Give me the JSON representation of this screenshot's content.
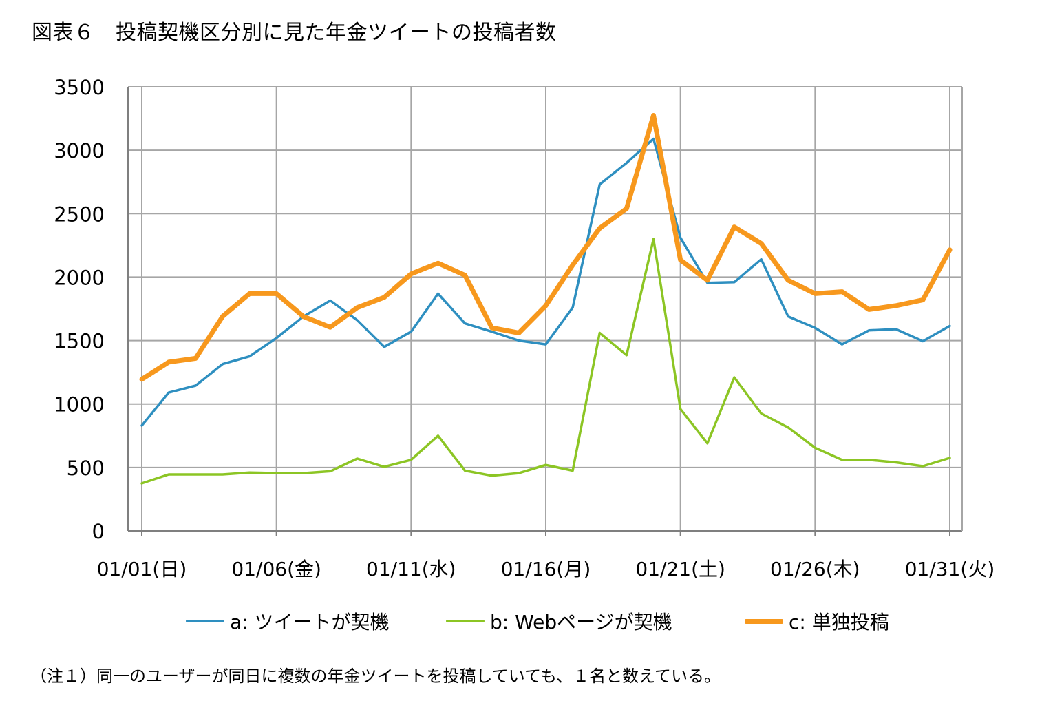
{
  "chart_data": {
    "type": "line",
    "title": "図表６　投稿契機区分別に見た年金ツイートの投稿者数",
    "xlabel": "",
    "ylabel": "",
    "ylim": [
      0,
      3500
    ],
    "yticks": [
      0,
      500,
      1000,
      1500,
      2000,
      2500,
      3000,
      3500
    ],
    "xtick_labels": [
      {
        "day": 1,
        "label": "01/01(日)"
      },
      {
        "day": 6,
        "label": "01/06(金)"
      },
      {
        "day": 11,
        "label": "01/11(水)"
      },
      {
        "day": 16,
        "label": "01/16(月)"
      },
      {
        "day": 21,
        "label": "01/21(土)"
      },
      {
        "day": 26,
        "label": "01/26(木)"
      },
      {
        "day": 31,
        "label": "01/31(火)"
      }
    ],
    "x": [
      1,
      2,
      3,
      4,
      5,
      6,
      7,
      8,
      9,
      10,
      11,
      12,
      13,
      14,
      15,
      16,
      17,
      18,
      19,
      20,
      21,
      22,
      23,
      24,
      25,
      26,
      27,
      28,
      29,
      30,
      31
    ],
    "grid": true,
    "legend_position": "bottom",
    "series": [
      {
        "name": "a: ツイートが契機",
        "color": "#2e8fc0",
        "values": [
          830,
          1090,
          1145,
          1315,
          1375,
          1520,
          1690,
          1815,
          1660,
          1450,
          1570,
          1870,
          1635,
          1570,
          1500,
          1470,
          1760,
          2730,
          2900,
          3090,
          2310,
          1955,
          1960,
          2140,
          1690,
          1600,
          1470,
          1580,
          1590,
          1495,
          1615
        ]
      },
      {
        "name": "b: Webページが契機",
        "color": "#8cc524",
        "values": [
          375,
          445,
          445,
          445,
          460,
          455,
          455,
          470,
          570,
          505,
          560,
          750,
          475,
          435,
          455,
          520,
          475,
          1560,
          1385,
          2300,
          960,
          690,
          1210,
          925,
          815,
          655,
          560,
          560,
          540,
          510,
          575
        ]
      },
      {
        "name": "c: 単独投稿",
        "color": "#f7981d",
        "values": [
          1195,
          1330,
          1360,
          1690,
          1870,
          1870,
          1690,
          1605,
          1760,
          1840,
          2025,
          2110,
          2015,
          1600,
          1560,
          1775,
          2095,
          2385,
          2540,
          3275,
          2135,
          1975,
          2395,
          2265,
          1975,
          1870,
          1885,
          1745,
          1775,
          1820,
          2215
        ]
      }
    ]
  },
  "note": "（注１）同一のユーザーが同日に複数の年金ツイートを投稿していても、１名と数えている。"
}
